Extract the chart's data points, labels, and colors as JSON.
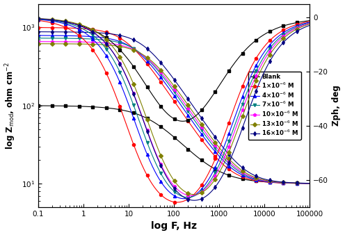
{
  "title": "",
  "xlabel": "log F, Hz",
  "ylabel_left": "log Z$_{\\mathbf{mod}}$, ohm cm$^{-2}$",
  "ylabel_right": "Zph, deg",
  "series": [
    {
      "label": "Blank",
      "color": "#000000",
      "marker": "s",
      "Rs": 10,
      "Rct": 90,
      "C": 0.0002,
      "phase_scale": 1.0
    },
    {
      "label": "1×10$^{-6}$ M",
      "color": "#ff0000",
      "marker": "o",
      "Rs": 10,
      "Rct": 990,
      "C": 3e-05,
      "phase_scale": 1.0
    },
    {
      "label": "4×10$^{-6}$ M",
      "color": "#0000ff",
      "marker": "^",
      "Rs": 10,
      "Rct": 780,
      "C": 2.5e-05,
      "phase_scale": 1.0
    },
    {
      "label": "7×10$^{-6}$ M",
      "color": "#008080",
      "marker": "v",
      "Rs": 10,
      "Rct": 720,
      "C": 2.2e-05,
      "phase_scale": 1.0
    },
    {
      "label": "10×10$^{-6}$ M",
      "color": "#ff00ff",
      "marker": "p",
      "Rs": 10,
      "Rct": 650,
      "C": 2e-05,
      "phase_scale": 1.0
    },
    {
      "label": "13×10$^{-6}$ M",
      "color": "#808000",
      "marker": "D",
      "Rs": 10,
      "Rct": 610,
      "C": 1.8e-05,
      "phase_scale": 1.0
    },
    {
      "label": "16×10$^{-6}$ M",
      "color": "#000080",
      "marker": "d",
      "Rs": 10,
      "Rct": 870,
      "C": 1.5e-05,
      "phase_scale": 1.0
    }
  ],
  "ylim_left": [
    5,
    2000
  ],
  "ylim_right": [
    -70,
    5
  ],
  "yticks_right": [
    0,
    -20,
    -40,
    -60
  ],
  "background": "#ffffff",
  "markersize": 3,
  "linewidth": 0.8
}
